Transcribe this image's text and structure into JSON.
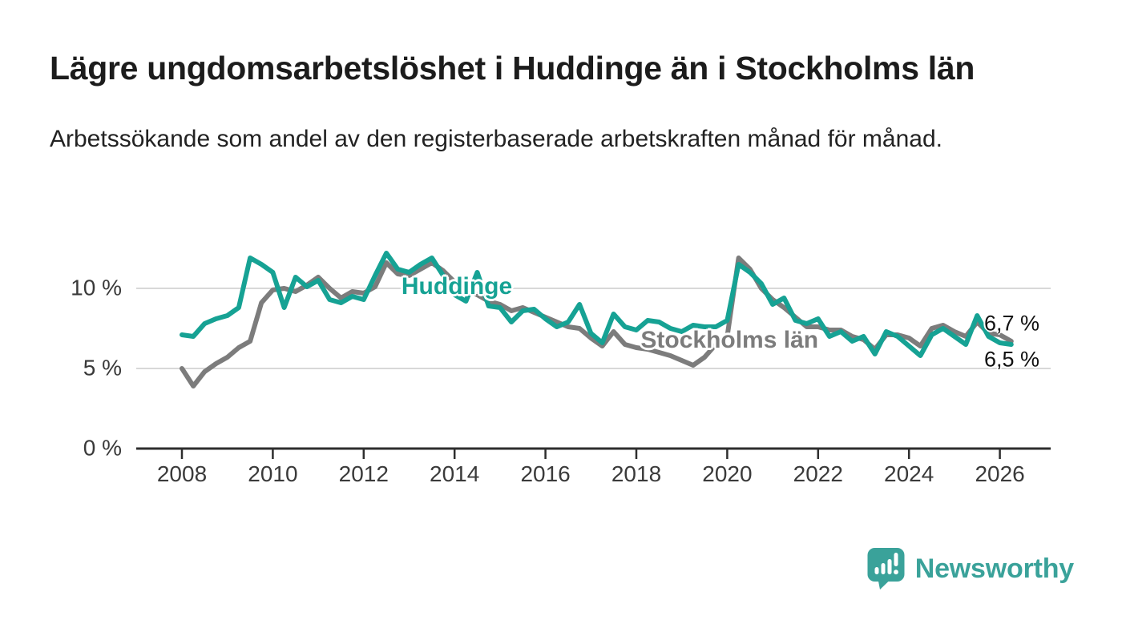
{
  "header": {
    "title": "Lägre ungdomsarbetslöshet i Huddinge än i Stockholms län",
    "subtitle": "Arbetssökande som andel av den registerbaserade arbetskraften månad för månad."
  },
  "chart_data": {
    "type": "line",
    "x_start": 2008,
    "x_step": 0.25,
    "xlim": [
      2007,
      2027.1
    ],
    "ylim": [
      0,
      13
    ],
    "grid": "horizontal",
    "x_axis_ticks": [
      2008,
      2010,
      2012,
      2014,
      2016,
      2018,
      2020,
      2022,
      2024,
      2026
    ],
    "y_axis_ticks": [
      {
        "value": 0,
        "label": "0 %"
      },
      {
        "value": 5,
        "label": "5 %"
      },
      {
        "value": 10,
        "label": "10 %"
      }
    ],
    "colors": {
      "grid": "#d8d8d8",
      "axis": "#2e2e2e",
      "tick_text": "#3a3a3a"
    },
    "series": [
      {
        "name": "Stockholms län",
        "color": "#7c7c7c",
        "end_label": "6,7 %",
        "values": [
          5.0,
          3.9,
          4.8,
          5.3,
          5.7,
          6.3,
          6.7,
          9.1,
          9.9,
          10.0,
          9.8,
          10.2,
          10.7,
          10.0,
          9.4,
          9.8,
          9.7,
          10.1,
          11.6,
          10.9,
          10.8,
          11.2,
          11.6,
          11.1,
          10.4,
          10.0,
          9.6,
          9.2,
          9.0,
          8.6,
          8.8,
          8.5,
          8.2,
          7.9,
          7.6,
          7.5,
          6.9,
          6.4,
          7.3,
          6.5,
          6.3,
          6.2,
          6.0,
          5.8,
          5.5,
          5.2,
          5.7,
          6.5,
          7.0,
          11.9,
          11.2,
          10.0,
          9.3,
          8.8,
          8.2,
          7.6,
          7.6,
          7.4,
          7.4,
          7.0,
          6.8,
          6.2,
          7.1,
          7.1,
          6.9,
          6.4,
          7.5,
          7.7,
          7.3,
          7.0,
          7.9,
          7.2,
          7.1,
          6.7
        ]
      },
      {
        "name": "Huddinge",
        "color": "#16a294",
        "end_label": "6,5 %",
        "values": [
          7.1,
          7.0,
          7.8,
          8.1,
          8.3,
          8.8,
          11.9,
          11.5,
          11.0,
          8.8,
          10.7,
          10.1,
          10.5,
          9.3,
          9.1,
          9.5,
          9.3,
          10.8,
          12.2,
          11.2,
          11.0,
          11.5,
          11.9,
          10.8,
          9.6,
          9.2,
          11.0,
          8.9,
          8.8,
          7.9,
          8.6,
          8.7,
          8.1,
          7.6,
          7.9,
          9.0,
          7.2,
          6.6,
          8.4,
          7.6,
          7.4,
          8.0,
          7.9,
          7.5,
          7.3,
          7.7,
          7.6,
          7.6,
          8.0,
          11.5,
          11.0,
          10.3,
          9.0,
          9.4,
          8.0,
          7.8,
          8.1,
          7.0,
          7.3,
          6.7,
          7.0,
          5.9,
          7.3,
          7.0,
          6.4,
          5.8,
          7.1,
          7.5,
          7.0,
          6.5,
          8.3,
          7.0,
          6.6,
          6.5
        ]
      }
    ],
    "series_annotations": [
      {
        "text": "Huddinge",
        "color": "#16a294",
        "x": 2014.05,
        "y": 10.1
      },
      {
        "text": "Stockholms län",
        "color": "#7c7c7c",
        "x": 2020.05,
        "y": 6.75
      }
    ]
  },
  "footer": {
    "brand": "Newsworthy",
    "brand_color": "#3aa29a",
    "logo_icon": "newsworthy-speech-bubble-chart-icon"
  }
}
